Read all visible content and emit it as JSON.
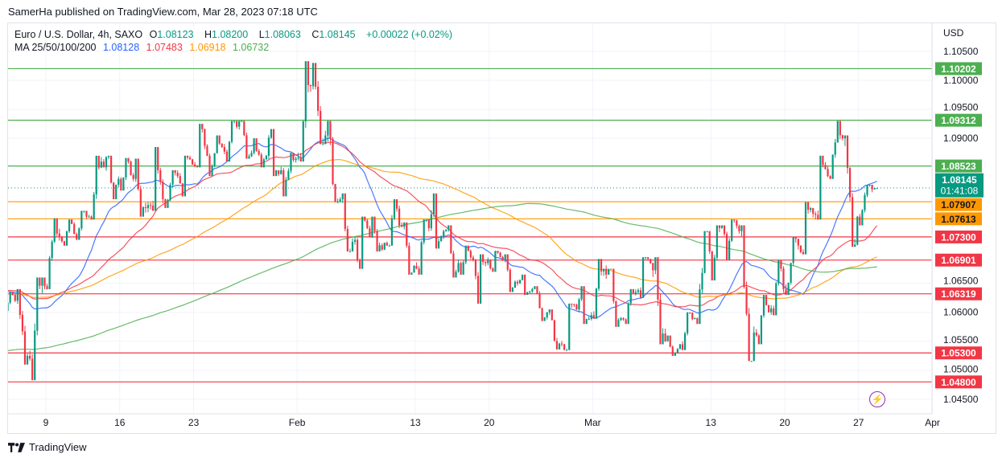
{
  "header": {
    "publisher_line": "SamerHa published on TradingView.com, Mar 28, 2023 07:18 UTC"
  },
  "legend": {
    "symbol": "Euro / U.S. Dollar, 4h, SAXO",
    "ohlc": [
      {
        "label": "O",
        "value": "1.08123"
      },
      {
        "label": "H",
        "value": "1.08200"
      },
      {
        "label": "L",
        "value": "1.08063"
      },
      {
        "label": "C",
        "value": "1.08145"
      }
    ],
    "change": "+0.00022 (+0.02%)",
    "ma_label": "MA 25/50/100/200",
    "ma_values": [
      {
        "value": "1.08128",
        "color": "#2962ff"
      },
      {
        "value": "1.07483",
        "color": "#f23645"
      },
      {
        "value": "1.06918",
        "color": "#ff9800"
      },
      {
        "value": "1.06732",
        "color": "#4caf50"
      }
    ]
  },
  "price_axis": {
    "currency": "USD",
    "ticks": [
      "1.10500",
      "1.10000",
      "1.09500",
      "1.09000",
      "1.06500",
      "1.06000",
      "1.05500",
      "1.05000",
      "1.04500"
    ]
  },
  "current_price": {
    "value": "1.08145",
    "countdown": "01:41:08",
    "color": "#089981"
  },
  "footer": {
    "brand": "TradingView"
  },
  "chart_data": {
    "type": "candlestick",
    "timeframe": "4h",
    "symbol": "EURUSD",
    "ylim": [
      1.0425,
      1.1075
    ],
    "grid": true,
    "colors": {
      "up": "#089981",
      "down": "#f23645"
    },
    "x_tick_labels": [
      {
        "date": "2023-01-09",
        "label": "9"
      },
      {
        "date": "2023-01-16",
        "label": "16"
      },
      {
        "date": "2023-01-23",
        "label": "23"
      },
      {
        "date": "2023-02-01",
        "label": "Feb"
      },
      {
        "date": "2023-02-13",
        "label": "13"
      },
      {
        "date": "2023-02-20",
        "label": "20"
      },
      {
        "date": "2023-03-01",
        "label": "Mar"
      },
      {
        "date": "2023-03-13",
        "label": "13"
      },
      {
        "date": "2023-03-20",
        "label": "20"
      },
      {
        "date": "2023-03-27",
        "label": "27"
      },
      {
        "date": "2023-04-03",
        "label": "Apr"
      }
    ],
    "horizontal_levels": [
      {
        "price": 1.10202,
        "label": "1.10202",
        "color": "#4caf50"
      },
      {
        "price": 1.09312,
        "label": "1.09312",
        "color": "#4caf50"
      },
      {
        "price": 1.08523,
        "label": "1.08523",
        "color": "#4caf50"
      },
      {
        "price": 1.07907,
        "label": "1.07907",
        "color": "#ff9800"
      },
      {
        "price": 1.07613,
        "label": "1.07613",
        "color": "#ff9800"
      },
      {
        "price": 1.073,
        "label": "1.07300",
        "color": "#f23645"
      },
      {
        "price": 1.06901,
        "label": "1.06901",
        "color": "#f23645"
      },
      {
        "price": 1.06319,
        "label": "1.06319",
        "color": "#f23645"
      },
      {
        "price": 1.053,
        "label": "1.05300",
        "color": "#f23645"
      },
      {
        "price": 1.048,
        "label": "1.04800",
        "color": "#f23645"
      }
    ],
    "moving_averages": [
      {
        "period": 25,
        "color": "#2962ff",
        "value_at_start": 1.064
      },
      {
        "period": 50,
        "color": "#f23645",
        "value_at_start": 1.064
      },
      {
        "period": 100,
        "color": "#ff9800",
        "value_at_start": 1.0633
      },
      {
        "period": 200,
        "color": "#4caf50",
        "value_at_start": 1.0533
      }
    ],
    "daily_ohlc_columns": [
      "date",
      "open",
      "high",
      "low",
      "close"
    ],
    "daily_ohlc": [
      [
        "2023-01-04",
        1.061,
        1.0635,
        1.059,
        1.062
      ],
      [
        "2023-01-05",
        1.062,
        1.064,
        1.051,
        1.052
      ],
      [
        "2023-01-06",
        1.052,
        1.066,
        1.0483,
        1.0645
      ],
      [
        "2023-01-09",
        1.0645,
        1.0762,
        1.064,
        1.073
      ],
      [
        "2023-01-10",
        1.073,
        1.076,
        1.0715,
        1.0735
      ],
      [
        "2023-01-11",
        1.0735,
        1.0775,
        1.0725,
        1.0765
      ],
      [
        "2023-01-12",
        1.0765,
        1.087,
        1.076,
        1.085
      ],
      [
        "2023-01-13",
        1.085,
        1.087,
        1.0795,
        1.083
      ],
      [
        "2023-01-16",
        1.083,
        1.0866,
        1.081,
        1.083
      ],
      [
        "2023-01-17",
        1.083,
        1.0865,
        1.0765,
        1.0785
      ],
      [
        "2023-01-18",
        1.0785,
        1.0885,
        1.0775,
        1.0795
      ],
      [
        "2023-01-19",
        1.0795,
        1.0845,
        1.078,
        1.0835
      ],
      [
        "2023-01-20",
        1.0835,
        1.087,
        1.08,
        1.0855
      ],
      [
        "2023-01-23",
        1.0855,
        1.0925,
        1.085,
        1.087
      ],
      [
        "2023-01-24",
        1.087,
        1.0905,
        1.0835,
        1.0885
      ],
      [
        "2023-01-25",
        1.0885,
        1.093,
        1.086,
        1.092
      ],
      [
        "2023-01-26",
        1.092,
        1.093,
        1.0865,
        1.0875
      ],
      [
        "2023-01-27",
        1.0875,
        1.09,
        1.085,
        1.087
      ],
      [
        "2023-01-30",
        1.087,
        1.0916,
        1.0835,
        1.0845
      ],
      [
        "2023-01-31",
        1.0845,
        1.0875,
        1.08,
        1.0865
      ],
      [
        "2023-02-01",
        1.0865,
        1.1033,
        1.086,
        1.099
      ],
      [
        "2023-02-02",
        1.099,
        1.103,
        1.089,
        1.0905
      ],
      [
        "2023-02-03",
        1.0905,
        1.093,
        1.079,
        1.0795
      ],
      [
        "2023-02-06",
        1.0795,
        1.0805,
        1.0705,
        1.0725
      ],
      [
        "2023-02-07",
        1.0725,
        1.0765,
        1.0675,
        1.073
      ],
      [
        "2023-02-08",
        1.073,
        1.0765,
        1.0705,
        1.072
      ],
      [
        "2023-02-09",
        1.072,
        1.0795,
        1.0715,
        1.075
      ],
      [
        "2023-02-10",
        1.075,
        1.0755,
        1.0665,
        1.068
      ],
      [
        "2023-02-13",
        1.068,
        1.076,
        1.0665,
        1.0745
      ],
      [
        "2023-02-14",
        1.0745,
        1.0805,
        1.071,
        1.074
      ],
      [
        "2023-02-15",
        1.074,
        1.075,
        1.066,
        1.0685
      ],
      [
        "2023-02-16",
        1.0685,
        1.0715,
        1.0665,
        1.069
      ],
      [
        "2023-02-17",
        1.069,
        1.07,
        1.0615,
        1.069
      ],
      [
        "2023-02-20",
        1.069,
        1.0706,
        1.067,
        1.069
      ],
      [
        "2023-02-21",
        1.069,
        1.07,
        1.0635,
        1.065
      ],
      [
        "2023-02-22",
        1.065,
        1.0665,
        1.063,
        1.064
      ],
      [
        "2023-02-23",
        1.064,
        1.0645,
        1.0585,
        1.06
      ],
      [
        "2023-02-24",
        1.06,
        1.0605,
        1.0536,
        1.0545
      ],
      [
        "2023-02-27",
        1.0545,
        1.0615,
        1.0535,
        1.0605
      ],
      [
        "2023-02-28",
        1.0605,
        1.0645,
        1.058,
        1.0595
      ],
      [
        "2023-03-01",
        1.0595,
        1.0692,
        1.0589,
        1.0665
      ],
      [
        "2023-03-02",
        1.0665,
        1.0675,
        1.0575,
        1.059
      ],
      [
        "2023-03-03",
        1.059,
        1.064,
        1.058,
        1.0635
      ],
      [
        "2023-03-06",
        1.0635,
        1.0695,
        1.0625,
        1.0685
      ],
      [
        "2023-03-07",
        1.0685,
        1.0695,
        1.0545,
        1.055
      ],
      [
        "2023-03-08",
        1.055,
        1.056,
        1.0525,
        1.0545
      ],
      [
        "2023-03-09",
        1.0545,
        1.06,
        1.0535,
        1.059
      ],
      [
        "2023-03-10",
        1.059,
        1.074,
        1.058,
        1.0705
      ],
      [
        "2023-03-13",
        1.0705,
        1.075,
        1.0655,
        1.0735
      ],
      [
        "2023-03-14",
        1.0735,
        1.076,
        1.069,
        1.074
      ],
      [
        "2023-03-15",
        1.074,
        1.075,
        1.0516,
        1.0565
      ],
      [
        "2023-03-16",
        1.0565,
        1.063,
        1.0545,
        1.06
      ],
      [
        "2023-03-17",
        1.06,
        1.069,
        1.0595,
        1.064
      ],
      [
        "2023-03-20",
        1.064,
        1.073,
        1.063,
        1.0715
      ],
      [
        "2023-03-21",
        1.0715,
        1.079,
        1.07,
        1.077
      ],
      [
        "2023-03-22",
        1.077,
        1.087,
        1.076,
        1.0835
      ],
      [
        "2023-03-23",
        1.0835,
        1.093,
        1.083,
        1.09
      ],
      [
        "2023-03-24",
        1.09,
        1.0905,
        1.0713,
        1.0765
      ],
      [
        "2023-03-27",
        1.0765,
        1.082,
        1.075,
        1.0812
      ],
      [
        "2023-03-28",
        1.0812,
        1.082,
        1.0806,
        1.08145
      ]
    ]
  }
}
